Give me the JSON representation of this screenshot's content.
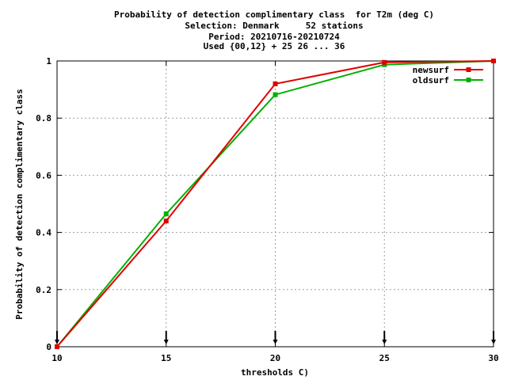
{
  "chart_data": {
    "type": "line",
    "title": [
      "Probability of detection complimentary class  for T2m (deg C)",
      "Selection: Denmark     52 stations",
      "Period: 20210716-20210724",
      "Used {00,12} + 25 26 ... 36"
    ],
    "xlabel": "thresholds C)",
    "ylabel": "Probability of detection complimentary class",
    "xlim": [
      10,
      30
    ],
    "ylim": [
      0,
      1
    ],
    "xticks": [
      "10",
      "15",
      "20",
      "25",
      "30"
    ],
    "yticks": [
      "0",
      "0.2",
      "0.4",
      "0.6",
      "0.8",
      "1"
    ],
    "grid": true,
    "legend_position": "top-right",
    "x": [
      10,
      15,
      20,
      25,
      30
    ],
    "series": [
      {
        "name": "newsurf",
        "color": "#e00000",
        "values": [
          0.0,
          0.44,
          0.92,
          0.995,
          1.0
        ]
      },
      {
        "name": "oldsurf",
        "color": "#00b000",
        "values": [
          0.0,
          0.465,
          0.882,
          0.987,
          1.0
        ]
      }
    ],
    "markers_x": [
      10,
      15,
      20,
      25,
      30
    ]
  }
}
